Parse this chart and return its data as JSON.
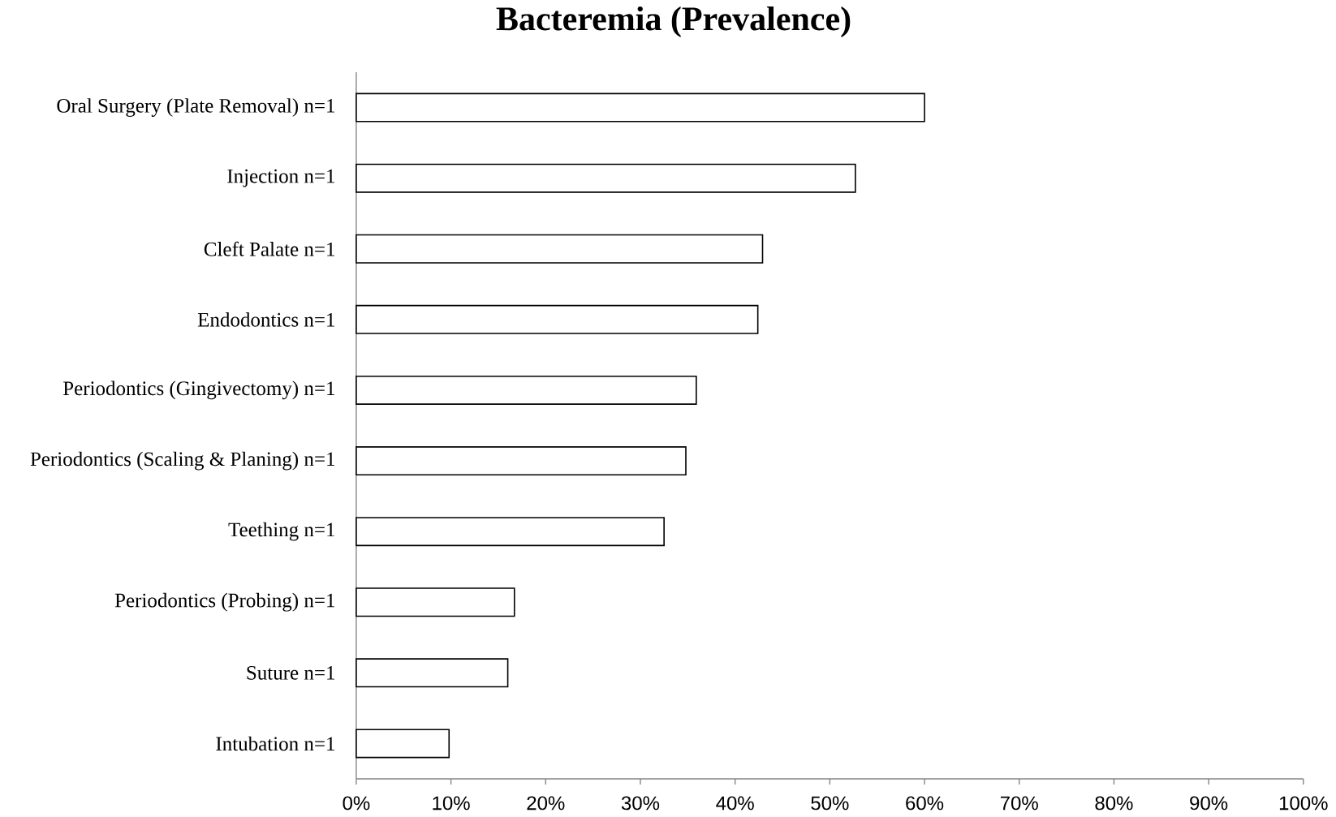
{
  "chart_data": {
    "type": "bar",
    "orientation": "horizontal",
    "title": "Bacteremia (Prevalence)",
    "categories": [
      "Oral Surgery (Plate Removal) n=1",
      "Injection n=1",
      "Cleft Palate n=1",
      "Endodontics n=1",
      "Periodontics (Gingivectomy) n=1",
      "Periodontics (Scaling & Planing) n=1",
      "Teething n=1",
      "Periodontics (Probing) n=1",
      "Suture n=1",
      "Intubation n=1"
    ],
    "values": [
      60,
      52.7,
      42.9,
      42.4,
      35.9,
      34.8,
      32.5,
      16.7,
      16,
      9.8
    ],
    "color": "#ffffff",
    "xlim": [
      0,
      100
    ],
    "xticks": [
      {
        "value": 0,
        "label": "0%"
      },
      {
        "value": 10,
        "label": "10%"
      },
      {
        "value": 20,
        "label": "20%"
      },
      {
        "value": 30,
        "label": "30%"
      },
      {
        "value": 40,
        "label": "40%"
      },
      {
        "value": 50,
        "label": "50%"
      },
      {
        "value": 60,
        "label": "60%"
      },
      {
        "value": 70,
        "label": "70%"
      },
      {
        "value": 80,
        "label": "80%"
      },
      {
        "value": 90,
        "label": "90%"
      },
      {
        "value": 100,
        "label": "100%"
      }
    ]
  }
}
